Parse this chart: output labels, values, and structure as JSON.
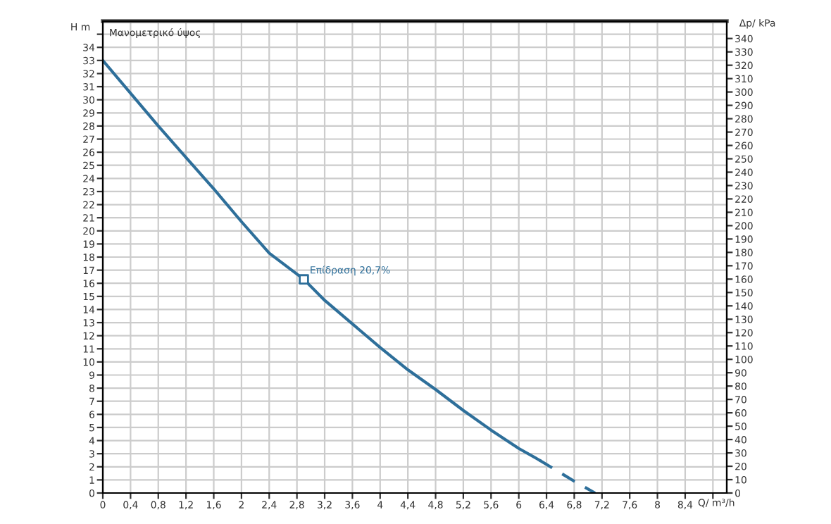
{
  "chart_data": {
    "type": "line",
    "xlabel": "Q/ m³/h",
    "ylabel": "H m",
    "y2label": "Δp/ kPa",
    "annotations": [
      "Μανομετρικό ύψος",
      {
        "text": "Επίδραση 20,7%",
        "x": 2.9,
        "y": 16.3
      }
    ],
    "series": [
      {
        "color": "#2e6f9a",
        "line_style": "solid",
        "marker": "none",
        "x": [
          0,
          0.4,
          0.8,
          1.2,
          1.6,
          2.0,
          2.4,
          2.9,
          3.2,
          3.6,
          4.0,
          4.4,
          4.8,
          5.2,
          5.6,
          6.0,
          6.3
        ],
        "values": [
          33.0,
          30.5,
          28.0,
          25.6,
          23.2,
          20.7,
          18.3,
          16.3,
          14.7,
          12.9,
          11.1,
          9.4,
          7.9,
          6.3,
          4.8,
          3.4,
          2.5
        ]
      },
      {
        "color": "#2e6f9a",
        "line_style": "dashed",
        "marker": "none",
        "x": [
          6.3,
          6.8,
          7.1
        ],
        "values": [
          2.5,
          0.9,
          0.0
        ]
      },
      {
        "type": "scatter",
        "color": "#2e6f9a",
        "marker": "square",
        "x": [
          2.9
        ],
        "values": [
          16.3
        ]
      }
    ],
    "xlim": [
      0,
      9.0
    ],
    "ylim": [
      0,
      36
    ],
    "y2lim": [
      0,
      353
    ],
    "xticks": [
      0,
      {
        "value": 0.4,
        "label": "0,4"
      },
      {
        "value": 0.8,
        "label": "0,8"
      },
      {
        "value": 1.2,
        "label": "1,2"
      },
      {
        "value": 1.6,
        "label": "1,6"
      },
      2,
      {
        "value": 2.4,
        "label": "2,4"
      },
      {
        "value": 2.8,
        "label": "2,8"
      },
      {
        "value": 3.2,
        "label": "3,2"
      },
      {
        "value": 3.6,
        "label": "3,6"
      },
      4,
      {
        "value": 4.4,
        "label": "4,4"
      },
      {
        "value": 4.8,
        "label": "4,8"
      },
      {
        "value": 5.2,
        "label": "5,2"
      },
      {
        "value": 5.6,
        "label": "5,6"
      },
      6,
      {
        "value": 6.4,
        "label": "6,4"
      },
      {
        "value": 6.8,
        "label": "6,8"
      },
      {
        "value": 7.2,
        "label": "7,2"
      },
      {
        "value": 7.6,
        "label": "7,6"
      },
      8,
      {
        "value": 8.4,
        "label": "8,4"
      },
      {
        "value": 8.8,
        "label": null
      }
    ],
    "yticks": [
      0,
      1,
      2,
      3,
      4,
      5,
      6,
      7,
      8,
      9,
      10,
      11,
      12,
      13,
      14,
      15,
      16,
      17,
      18,
      19,
      20,
      21,
      22,
      23,
      24,
      25,
      26,
      27,
      28,
      29,
      30,
      31,
      32,
      33,
      34,
      {
        "value": 35,
        "label": null
      }
    ],
    "y2ticks": [
      0,
      10,
      20,
      30,
      40,
      50,
      60,
      70,
      80,
      90,
      100,
      110,
      120,
      130,
      140,
      150,
      160,
      170,
      180,
      190,
      200,
      210,
      220,
      230,
      240,
      250,
      260,
      270,
      280,
      290,
      300,
      310,
      320,
      330,
      340
    ],
    "grid": true,
    "legend": false
  }
}
